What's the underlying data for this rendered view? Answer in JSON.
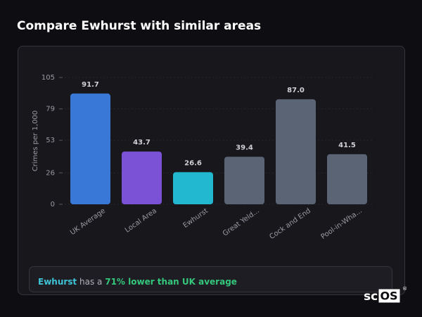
{
  "header": {
    "title": "Compare Ewhurst with similar areas"
  },
  "chart_data": {
    "type": "bar",
    "ylabel": "Crimes per 1,000",
    "categories": [
      "UK Average",
      "Local Area",
      "Ewhurst",
      "Great Yeld...",
      "Cock and End",
      "Pool-in-Wha..."
    ],
    "values": [
      91.7,
      43.7,
      26.6,
      39.4,
      87.0,
      41.5
    ],
    "value_labels": [
      "91.7",
      "43.7",
      "26.6",
      "39.4",
      "87.0",
      "41.5"
    ],
    "colors": [
      "#3a78d8",
      "#7b52d6",
      "#22b8cf",
      "#5a6475",
      "#5a6475",
      "#5a6475"
    ],
    "ylim": [
      0,
      105
    ],
    "yticks": [
      0,
      26,
      53,
      79,
      105
    ],
    "grid": true
  },
  "summary": {
    "area": "Ewhurst",
    "text": "has a",
    "highlight": "71% lower than UK average"
  },
  "logo": {
    "left": "sc",
    "right": "OS",
    "mark": "®"
  }
}
